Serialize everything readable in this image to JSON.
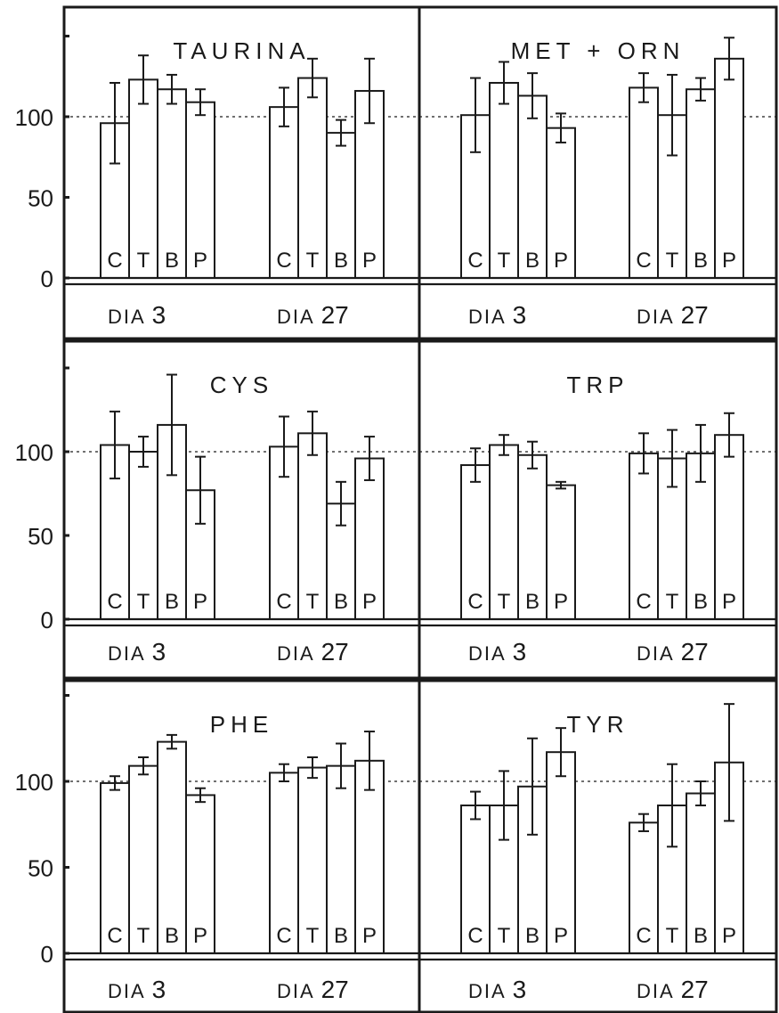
{
  "chart_data": [
    {
      "type": "bar",
      "title": "TAURINA",
      "day_labels": [
        {
          "prefix": "DIA",
          "number": "3"
        },
        {
          "prefix": "DIA",
          "number": "27"
        }
      ],
      "categories": [
        "C",
        "T",
        "B",
        "P"
      ],
      "groups": [
        {
          "values": [
            96,
            123,
            117,
            109
          ],
          "errors": [
            25,
            15,
            9,
            8
          ]
        },
        {
          "values": [
            106,
            124,
            90,
            116
          ],
          "errors": [
            12,
            12,
            8,
            20
          ]
        }
      ]
    },
    {
      "type": "bar",
      "title": "MET + ORN",
      "day_labels": [
        {
          "prefix": "DIA",
          "number": "3"
        },
        {
          "prefix": "DIA",
          "number": "27"
        }
      ],
      "categories": [
        "C",
        "T",
        "B",
        "P"
      ],
      "groups": [
        {
          "values": [
            101,
            121,
            113,
            93
          ],
          "errors": [
            23,
            13,
            14,
            9
          ]
        },
        {
          "values": [
            118,
            101,
            117,
            136
          ],
          "errors": [
            9,
            25,
            7,
            13
          ]
        }
      ]
    },
    {
      "type": "bar",
      "title": "CYS",
      "day_labels": [
        {
          "prefix": "DIA",
          "number": "3"
        },
        {
          "prefix": "DIA",
          "number": "27"
        }
      ],
      "categories": [
        "C",
        "T",
        "B",
        "P"
      ],
      "groups": [
        {
          "values": [
            104,
            100,
            116,
            77
          ],
          "errors": [
            20,
            9,
            30,
            20
          ]
        },
        {
          "values": [
            103,
            111,
            69,
            96
          ],
          "errors": [
            18,
            13,
            13,
            13
          ]
        }
      ]
    },
    {
      "type": "bar",
      "title": "TRP",
      "day_labels": [
        {
          "prefix": "DIA",
          "number": "3"
        },
        {
          "prefix": "DIA",
          "number": "27"
        }
      ],
      "categories": [
        "C",
        "T",
        "B",
        "P"
      ],
      "groups": [
        {
          "values": [
            92,
            104,
            98,
            80
          ],
          "errors": [
            10,
            6,
            8,
            2
          ]
        },
        {
          "values": [
            99,
            96,
            99,
            110
          ],
          "errors": [
            12,
            17,
            17,
            13
          ]
        }
      ]
    },
    {
      "type": "bar",
      "title": "PHE",
      "day_labels": [
        {
          "prefix": "DIA",
          "number": "3"
        },
        {
          "prefix": "DIA",
          "number": "27"
        }
      ],
      "categories": [
        "C",
        "T",
        "B",
        "P"
      ],
      "groups": [
        {
          "values": [
            99,
            109,
            123,
            92
          ],
          "errors": [
            4,
            5,
            4,
            4
          ]
        },
        {
          "values": [
            105,
            108,
            109,
            112
          ],
          "errors": [
            5,
            6,
            13,
            17
          ]
        }
      ]
    },
    {
      "type": "bar",
      "title": "TYR",
      "day_labels": [
        {
          "prefix": "DIA",
          "number": "3"
        },
        {
          "prefix": "DIA",
          "number": "27"
        }
      ],
      "categories": [
        "C",
        "T",
        "B",
        "P"
      ],
      "groups": [
        {
          "values": [
            86,
            86,
            97,
            117
          ],
          "errors": [
            8,
            20,
            28,
            14
          ]
        },
        {
          "values": [
            76,
            86,
            93,
            111
          ],
          "errors": [
            5,
            24,
            7,
            34
          ]
        }
      ]
    }
  ],
  "yaxis": {
    "ticks": [
      0,
      50,
      100
    ],
    "tick_labels": [
      "0",
      "50",
      "100"
    ],
    "reference_line": 100,
    "ylim": [
      0,
      150
    ]
  }
}
